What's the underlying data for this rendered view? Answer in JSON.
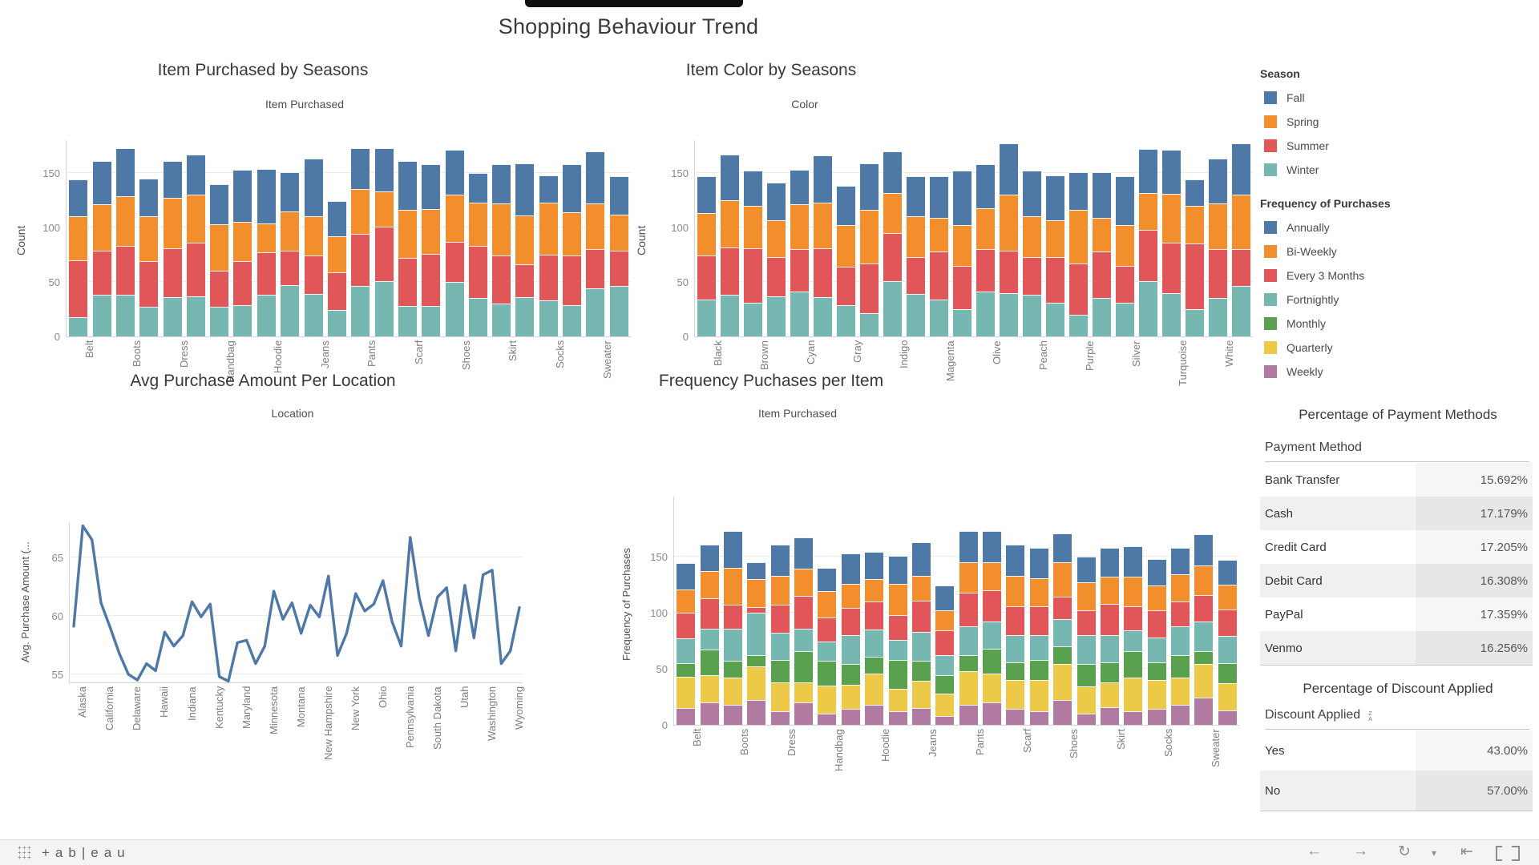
{
  "app": {
    "title": "Shopping Behaviour Trend"
  },
  "palette": {
    "blue": "#4e79a7",
    "orange": "#f28e2b",
    "red": "#e15759",
    "teal": "#76b7b2",
    "green": "#59a14f",
    "yellow": "#edc948",
    "purple": "#b07aa1",
    "line": "#4e79a7"
  },
  "legends": {
    "season": {
      "title": "Season",
      "items": [
        {
          "label": "Fall",
          "color": "#4e79a7"
        },
        {
          "label": "Spring",
          "color": "#f28e2b"
        },
        {
          "label": "Summer",
          "color": "#e15759"
        },
        {
          "label": "Winter",
          "color": "#76b7b2"
        }
      ]
    },
    "frequency": {
      "title": "Frequency of Purchases",
      "items": [
        {
          "label": "Annually",
          "color": "#4e79a7"
        },
        {
          "label": "Bi-Weekly",
          "color": "#f28e2b"
        },
        {
          "label": "Every 3 Months",
          "color": "#e15759"
        },
        {
          "label": "Fortnightly",
          "color": "#76b7b2"
        },
        {
          "label": "Monthly",
          "color": "#59a14f"
        },
        {
          "label": "Quarterly",
          "color": "#edc948"
        },
        {
          "label": "Weekly",
          "color": "#b07aa1"
        }
      ]
    }
  },
  "payment_table": {
    "title": "Percentage of Payment Methods",
    "column": "Payment Method",
    "rows": [
      {
        "label": "Bank Transfer",
        "value": "15.692%"
      },
      {
        "label": "Cash",
        "value": "17.179%"
      },
      {
        "label": "Credit Card",
        "value": "17.205%"
      },
      {
        "label": "Debit Card",
        "value": "16.308%"
      },
      {
        "label": "PayPal",
        "value": "17.359%"
      },
      {
        "label": "Venmo",
        "value": "16.256%"
      }
    ]
  },
  "discount_table": {
    "title": "Percentage of Discount Applied",
    "column": "Discount Applied",
    "rows": [
      {
        "label": "Yes",
        "value": "43.00%"
      },
      {
        "label": "No",
        "value": "57.00%"
      }
    ]
  },
  "toolbar": {
    "wordmark": "+ab|eau",
    "logo_glyph": "+",
    "icons": [
      {
        "name": "undo-icon",
        "glyph": "←"
      },
      {
        "name": "redo-icon",
        "glyph": "→"
      },
      {
        "name": "replay-icon",
        "glyph": "↻"
      },
      {
        "name": "replay-dropdown-icon",
        "glyph": "▾"
      },
      {
        "name": "revert-icon",
        "glyph": "⇤"
      }
    ]
  },
  "chart_data": [
    {
      "id": "items-by-season",
      "type": "bar",
      "stacked": true,
      "title": "Item Purchased by Seasons",
      "axis_title": "Item Purchased",
      "ylabel": "Count",
      "yticks": [
        0,
        50,
        100,
        150
      ],
      "legend": "Season",
      "series_bottom_to_top": [
        "Winter",
        "Summer",
        "Spring",
        "Fall"
      ],
      "colors": [
        "#76b7b2",
        "#e15759",
        "#f28e2b",
        "#4e79a7"
      ],
      "categories": [
        "Belt",
        "Boots",
        "Dress",
        "Handbag",
        "Hoodie",
        "Jeans",
        "Pants",
        "Scarf",
        "Shoes",
        "Skirt",
        "Socks",
        "Sweater"
      ],
      "bars_per_category": 2,
      "bars": [
        [
          18,
          52,
          40,
          34
        ],
        [
          38,
          41,
          42,
          40
        ],
        [
          38,
          45,
          46,
          44
        ],
        [
          27,
          42,
          41,
          35
        ],
        [
          36,
          45,
          46,
          34
        ],
        [
          37,
          49,
          44,
          37
        ],
        [
          27,
          33,
          43,
          37
        ],
        [
          29,
          40,
          36,
          48
        ],
        [
          38,
          39,
          27,
          50
        ],
        [
          47,
          32,
          36,
          36
        ],
        [
          39,
          35,
          36,
          53
        ],
        [
          24,
          35,
          33,
          32
        ],
        [
          46,
          48,
          41,
          38
        ],
        [
          51,
          50,
          32,
          40
        ],
        [
          28,
          44,
          44,
          45
        ],
        [
          28,
          48,
          41,
          41
        ],
        [
          50,
          37,
          43,
          41
        ],
        [
          35,
          48,
          40,
          27
        ],
        [
          30,
          44,
          48,
          36
        ],
        [
          36,
          30,
          45,
          48
        ],
        [
          33,
          42,
          48,
          25
        ],
        [
          29,
          45,
          40,
          44
        ],
        [
          44,
          36,
          42,
          48
        ],
        [
          46,
          33,
          33,
          35
        ]
      ]
    },
    {
      "id": "color-by-season",
      "type": "bar",
      "stacked": true,
      "title": "Item Color by Seasons",
      "axis_title": "Color",
      "ylabel": "Count",
      "yticks": [
        0,
        50,
        100,
        150
      ],
      "legend": "Season",
      "series_bottom_to_top": [
        "Winter",
        "Summer",
        "Spring",
        "Fall"
      ],
      "colors": [
        "#76b7b2",
        "#e15759",
        "#f28e2b",
        "#4e79a7"
      ],
      "categories": [
        "Black",
        "Brown",
        "Cyan",
        "Gray",
        "Indigo",
        "Magenta",
        "Olive",
        "Peach",
        "Purple",
        "Silver",
        "Turquoise",
        "White"
      ],
      "bars_per_category": 2,
      "bars": [
        [
          34,
          40,
          39,
          34
        ],
        [
          38,
          44,
          43,
          42
        ],
        [
          31,
          50,
          39,
          32
        ],
        [
          37,
          36,
          34,
          34
        ],
        [
          41,
          39,
          41,
          32
        ],
        [
          36,
          45,
          42,
          43
        ],
        [
          29,
          35,
          38,
          36
        ],
        [
          21,
          46,
          49,
          43
        ],
        [
          51,
          44,
          37,
          38
        ],
        [
          39,
          34,
          37,
          37
        ],
        [
          34,
          44,
          31,
          38
        ],
        [
          25,
          40,
          37,
          50
        ],
        [
          41,
          39,
          38,
          40
        ],
        [
          40,
          39,
          51,
          47
        ],
        [
          38,
          35,
          37,
          42
        ],
        [
          31,
          42,
          34,
          41
        ],
        [
          20,
          47,
          49,
          35
        ],
        [
          35,
          43,
          31,
          42
        ],
        [
          31,
          34,
          37,
          45
        ],
        [
          51,
          47,
          34,
          40
        ],
        [
          40,
          46,
          45,
          40
        ],
        [
          25,
          60,
          35,
          24
        ],
        [
          35,
          45,
          42,
          41
        ],
        [
          46,
          34,
          50,
          47
        ]
      ]
    },
    {
      "id": "avg-purchase-per-location",
      "type": "line",
      "title": "Avg Purchase Amount Per Location",
      "axis_title": "Location",
      "ylabel": "Avg. Purchase Amount (...",
      "yticks": [
        55,
        60,
        65
      ],
      "ylim": [
        54.3,
        68.0
      ],
      "color": "#4e79a7",
      "x_tick_labels": [
        {
          "i": 1,
          "label": "Alaska"
        },
        {
          "i": 4,
          "label": "California"
        },
        {
          "i": 7,
          "label": "Delaware"
        },
        {
          "i": 10,
          "label": "Hawaii"
        },
        {
          "i": 13,
          "label": "Indiana"
        },
        {
          "i": 16,
          "label": "Kentucky"
        },
        {
          "i": 19,
          "label": "Maryland"
        },
        {
          "i": 22,
          "label": "Minnesota"
        },
        {
          "i": 25,
          "label": "Montana"
        },
        {
          "i": 28,
          "label": "New Hampshire"
        },
        {
          "i": 31,
          "label": "New York"
        },
        {
          "i": 34,
          "label": "Ohio"
        },
        {
          "i": 37,
          "label": "Pennsylvania"
        },
        {
          "i": 40,
          "label": "South Dakota"
        },
        {
          "i": 43,
          "label": "Utah"
        },
        {
          "i": 46,
          "label": "Washington"
        },
        {
          "i": 49,
          "label": "Wyoming"
        }
      ],
      "values": [
        59.1,
        67.7,
        66.5,
        61.1,
        59.0,
        56.8,
        55.0,
        54.5,
        55.9,
        55.3,
        58.6,
        57.4,
        58.3,
        61.2,
        59.9,
        61.0,
        54.8,
        54.4,
        57.7,
        57.9,
        55.9,
        57.4,
        62.1,
        59.7,
        61.1,
        58.5,
        60.9,
        59.9,
        63.4,
        56.6,
        58.5,
        61.9,
        60.4,
        61.0,
        63.0,
        59.5,
        57.4,
        66.7,
        61.5,
        58.3,
        61.6,
        62.4,
        57.0,
        62.6,
        58.1,
        63.5,
        63.9,
        55.9,
        57.0,
        60.7
      ]
    },
    {
      "id": "frequency-purchases-per-item",
      "type": "bar",
      "stacked": true,
      "title": "Frequency Puchases per Item",
      "axis_title": "Item Purchased",
      "ylabel": "Frequency of Purchases",
      "yticks": [
        0,
        50,
        100,
        150
      ],
      "legend": "Frequency of Purchases",
      "series_bottom_to_top": [
        "Weekly",
        "Quarterly",
        "Monthly",
        "Fortnightly",
        "Every 3 Months",
        "Bi-Weekly",
        "Annually"
      ],
      "colors": [
        "#b07aa1",
        "#edc948",
        "#59a14f",
        "#76b7b2",
        "#e15759",
        "#f28e2b",
        "#4e79a7"
      ],
      "categories": [
        "Belt",
        "Boots",
        "Dress",
        "Handbag",
        "Hoodie",
        "Jeans",
        "Pants",
        "Scarf",
        "Shoes",
        "Skirt",
        "Socks",
        "Sweater"
      ],
      "bars_per_category": 2,
      "bars": [
        [
          15,
          28,
          12,
          22,
          23,
          21,
          23
        ],
        [
          20,
          24,
          23,
          19,
          27,
          24,
          24
        ],
        [
          18,
          24,
          15,
          29,
          21,
          33,
          33
        ],
        [
          22,
          30,
          10,
          38,
          5,
          25,
          15
        ],
        [
          12,
          26,
          20,
          24,
          25,
          26,
          28
        ],
        [
          20,
          18,
          28,
          20,
          29,
          24,
          28
        ],
        [
          10,
          25,
          22,
          17,
          22,
          23,
          21
        ],
        [
          14,
          22,
          18,
          26,
          24,
          22,
          27
        ],
        [
          18,
          28,
          15,
          24,
          25,
          20,
          24
        ],
        [
          12,
          20,
          26,
          18,
          22,
          28,
          25
        ],
        [
          15,
          24,
          18,
          26,
          28,
          22,
          30
        ],
        [
          8,
          20,
          16,
          18,
          22,
          18,
          22
        ],
        [
          18,
          30,
          14,
          26,
          30,
          27,
          28
        ],
        [
          20,
          26,
          22,
          24,
          28,
          25,
          28
        ],
        [
          14,
          26,
          16,
          24,
          26,
          27,
          28
        ],
        [
          12,
          28,
          18,
          22,
          26,
          25,
          27
        ],
        [
          22,
          32,
          16,
          24,
          20,
          31,
          26
        ],
        [
          10,
          24,
          20,
          26,
          22,
          25,
          23
        ],
        [
          16,
          22,
          18,
          24,
          28,
          24,
          26
        ],
        [
          12,
          30,
          24,
          18,
          22,
          26,
          27
        ],
        [
          14,
          26,
          16,
          22,
          24,
          22,
          24
        ],
        [
          18,
          24,
          20,
          26,
          22,
          24,
          24
        ],
        [
          24,
          30,
          12,
          26,
          24,
          26,
          28
        ],
        [
          13,
          24,
          18,
          24,
          24,
          22,
          22
        ]
      ]
    }
  ]
}
